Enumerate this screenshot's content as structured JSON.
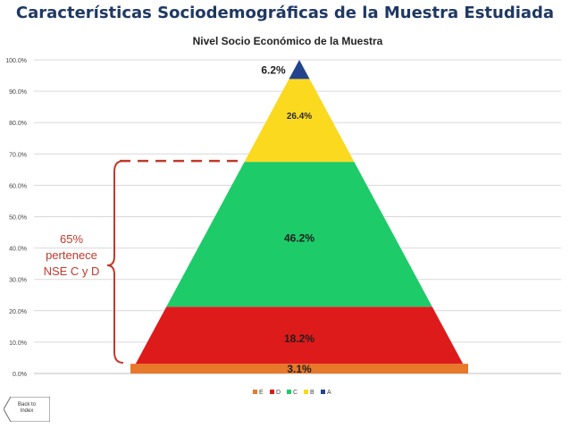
{
  "page_title": "Características Sociodemográficas de la Muestra Estudiada",
  "chart_data": {
    "type": "area",
    "shape": "pyramid",
    "title": "Nivel Socio Económico de la Muestra",
    "xlabel": "",
    "ylabel": "",
    "ylim": [
      0,
      100
    ],
    "y_ticks": [
      "0.0%",
      "10.0%",
      "20.0%",
      "30.0%",
      "40.0%",
      "50.0%",
      "60.0%",
      "70.0%",
      "80.0%",
      "90.0%",
      "100.0%"
    ],
    "grid": true,
    "legend_position": "bottom",
    "series": [
      {
        "name": "E",
        "value": 3.1,
        "label": "3.1%",
        "color": "#e8782a"
      },
      {
        "name": "D",
        "value": 18.2,
        "label": "18.2%",
        "color": "#dd1b1b"
      },
      {
        "name": "C",
        "value": 46.2,
        "label": "46.2%",
        "color": "#1ecb69"
      },
      {
        "name": "B",
        "value": 26.4,
        "label": "26.4%",
        "color": "#fad91f"
      },
      {
        "name": "A",
        "value": 6.2,
        "label": "6.2%",
        "color": "#23438c"
      }
    ]
  },
  "annotation": {
    "text": "65%\npertenece\nNSE C y D",
    "color": "#c0392b"
  },
  "back_button": {
    "label": "Back to\nIndex"
  }
}
